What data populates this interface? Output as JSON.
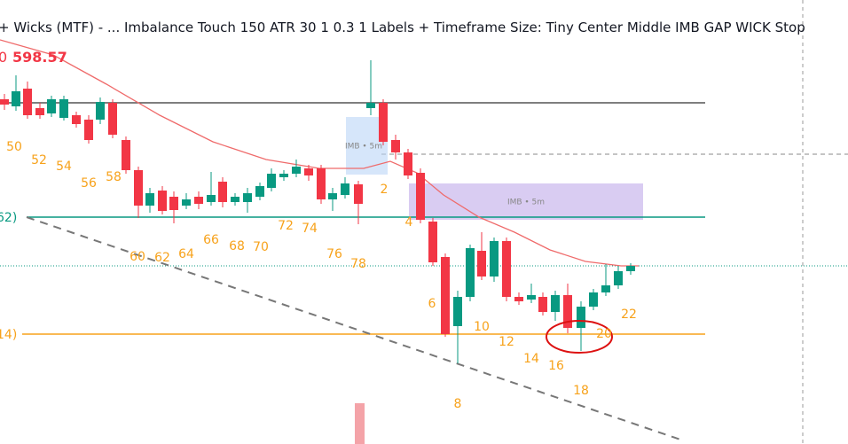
{
  "header": {
    "title": "+ Wicks (MTF) - ...  Imbalance Touch 150 ATR 30 1 0.3 1 Labels + Timeframe Size: Tiny Center Middle IMB GAP WICK Stop"
  },
  "price": {
    "prefix": "0",
    "value": "598.57"
  },
  "levels": [
    "62)",
    "14)"
  ],
  "imbalances": [
    "IMB • 5m",
    "IMB • 5m"
  ],
  "bar_counts": [
    "50",
    "52",
    "54",
    "56",
    "58",
    "60",
    "62",
    "64",
    "66",
    "68",
    "70",
    "72",
    "74",
    "76",
    "78",
    "2",
    "4",
    "6",
    "8",
    "10",
    "12",
    "14",
    "16",
    "18",
    "20",
    "22"
  ]
}
